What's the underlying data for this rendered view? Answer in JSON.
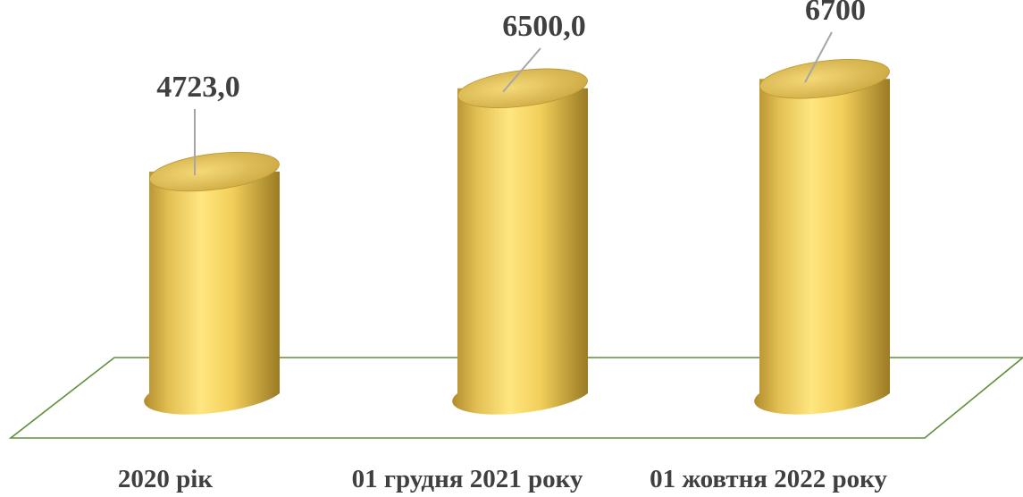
{
  "chart_data": {
    "type": "bar",
    "style": "3d-cylinder",
    "categories": [
      "2020 рік",
      "01 грудня 2021 року",
      "01 жовтня  2022 року"
    ],
    "values": [
      4723.0,
      6500.0,
      6700
    ],
    "data_labels": [
      "4723,0",
      "6500,0",
      "6700"
    ],
    "title": "",
    "xlabel": "",
    "ylabel": "",
    "ylim": [
      0,
      7000
    ],
    "grid": false,
    "legend": "none",
    "colors": {
      "bar_light": "#ffe680",
      "bar_mid": "#f2cf5a",
      "bar_dark": "#b08c2e",
      "bar_top": "#e2c25a",
      "floor_stroke": "#5f8f3a",
      "leader_line": "#a6a6a6",
      "text": "#404040"
    }
  }
}
